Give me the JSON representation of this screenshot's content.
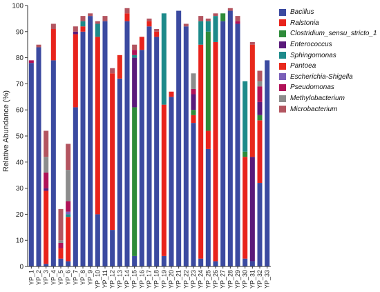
{
  "chart_data": {
    "type": "bar",
    "stacked": true,
    "ylabel": "Relative Abundance (%)",
    "xlabel": "",
    "ylim": [
      0,
      100
    ],
    "yticks": [
      0,
      10,
      20,
      30,
      40,
      50,
      60,
      70,
      80,
      90,
      100
    ],
    "legend_position": "top-right",
    "grid": false,
    "categories": [
      "YP_1",
      "YP_2",
      "YP_3",
      "YP_4",
      "YP_5",
      "YP_6",
      "YP_7",
      "YP_8",
      "YP_9",
      "YP_10",
      "YP_11",
      "YP_12",
      "YP_13",
      "YP_14",
      "YP_15",
      "YP_16",
      "YP_17",
      "YP_18",
      "YP_19",
      "YP_20",
      "YP_21",
      "YP_22",
      "YP_23",
      "YP_24",
      "YP_25",
      "YP_26",
      "YP_27",
      "YP_28",
      "YP_29",
      "YP_30",
      "YP_31",
      "YP_32",
      "YP_33"
    ],
    "series": [
      {
        "name": "Bacillus",
        "color": "#3b4aa0",
        "values": [
          78,
          84,
          1,
          79,
          3,
          2,
          61,
          90,
          96,
          20,
          94,
          14,
          72,
          94,
          4,
          83,
          92,
          88,
          4,
          65,
          98,
          92,
          55,
          3,
          45,
          2,
          94,
          98,
          93,
          3,
          2,
          32,
          79
        ]
      },
      {
        "name": "Ralstonia",
        "color": "#e8231c",
        "values": [
          0,
          0,
          28,
          12,
          4,
          17,
          28,
          2,
          0,
          68,
          0,
          60,
          0,
          3,
          0,
          5,
          2,
          2,
          58,
          2,
          0,
          0,
          3,
          82,
          7,
          84,
          0,
          0,
          0,
          39,
          0,
          24,
          0
        ]
      },
      {
        "name": "Clostridium_sensu_stricto_1",
        "color": "#2e8b3a",
        "values": [
          0,
          0,
          0,
          0,
          0,
          0,
          0,
          0,
          0,
          0,
          0,
          0,
          0,
          0,
          57,
          0,
          0,
          0,
          0,
          0,
          0,
          0,
          2,
          0,
          38,
          0,
          3,
          0,
          0,
          2,
          0,
          2,
          0
        ]
      },
      {
        "name": "Enterococcus",
        "color": "#5a1a7a",
        "values": [
          0,
          0,
          1,
          0,
          0,
          0,
          1,
          0,
          0,
          0,
          0,
          0,
          0,
          0,
          19,
          0,
          0,
          0,
          0,
          0,
          0,
          0,
          6,
          0,
          0,
          0,
          0,
          0,
          0,
          0,
          40,
          5,
          0
        ]
      },
      {
        "name": "Sphingomonas",
        "color": "#1d8a8a",
        "values": [
          0,
          0,
          0,
          0,
          0,
          1,
          0,
          2,
          0,
          5,
          0,
          0,
          0,
          0,
          1,
          0,
          0,
          0,
          35,
          0,
          0,
          0,
          0,
          9,
          4,
          10,
          0,
          0,
          0,
          27,
          0,
          0,
          0
        ]
      },
      {
        "name": "Pantoea",
        "color": "#e8291c",
        "values": [
          0,
          0,
          0,
          0,
          0,
          0,
          0,
          0,
          0,
          0,
          0,
          0,
          9,
          0,
          0,
          0,
          0,
          0,
          0,
          0,
          0,
          0,
          0,
          0,
          0,
          0,
          0,
          0,
          0,
          0,
          43,
          0,
          0
        ]
      },
      {
        "name": "Escherichia-Shigella",
        "color": "#7a5fb8",
        "values": [
          0,
          0,
          0,
          0,
          0,
          1,
          0,
          0,
          0,
          0,
          0,
          0,
          0,
          0,
          0,
          0,
          0,
          0,
          0,
          0,
          0,
          0,
          0,
          0,
          0,
          0,
          0,
          0,
          0,
          0,
          0,
          0,
          0
        ]
      },
      {
        "name": "Pseudomonas",
        "color": "#b01258",
        "values": [
          1,
          0,
          6,
          0,
          2,
          4,
          0,
          0,
          0,
          0,
          0,
          0,
          0,
          0,
          2,
          0,
          0,
          0,
          0,
          0,
          0,
          0,
          2,
          0,
          0,
          0,
          0,
          0,
          1,
          0,
          0,
          6,
          0
        ]
      },
      {
        "name": "Methylobacterium",
        "color": "#8c8c8c",
        "values": [
          0,
          0,
          6,
          0,
          1,
          12,
          0,
          0,
          0,
          0,
          0,
          0,
          0,
          0,
          0,
          0,
          0,
          0,
          0,
          0,
          0,
          0,
          6,
          0,
          0,
          0,
          0,
          0,
          0,
          0,
          0,
          2,
          0
        ]
      },
      {
        "name": "Microbacterium",
        "color": "#b35560",
        "values": [
          0,
          1,
          10,
          2,
          12,
          10,
          2,
          2,
          1,
          1,
          2,
          2,
          0,
          2,
          2,
          0,
          1,
          1,
          0,
          0,
          0,
          1,
          0,
          2,
          1,
          1,
          0,
          1,
          2,
          0,
          1,
          4,
          0
        ]
      }
    ]
  }
}
